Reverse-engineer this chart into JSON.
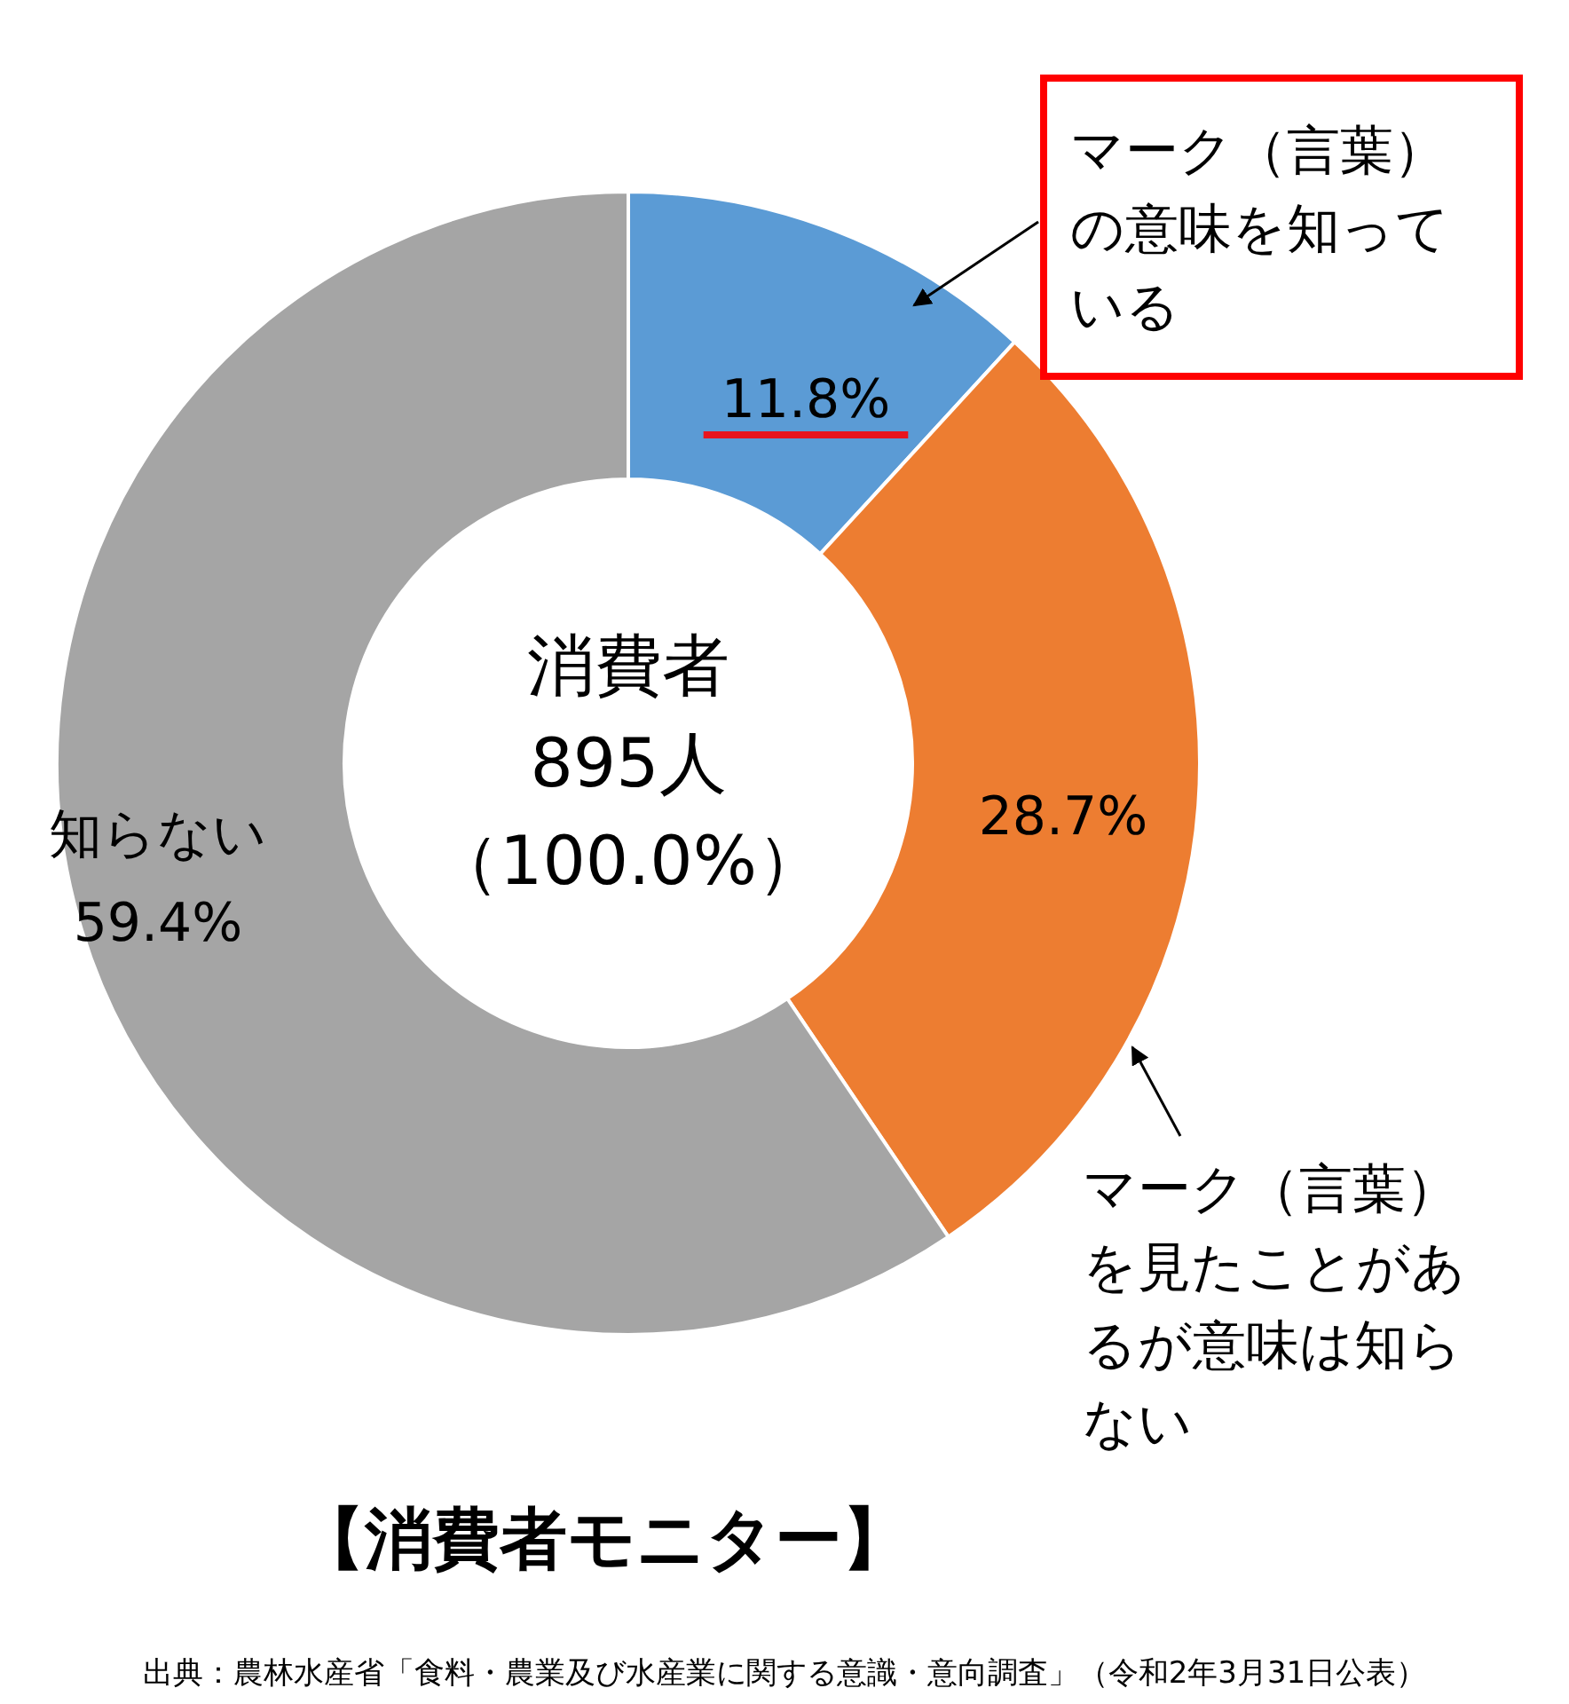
{
  "chart_data": {
    "type": "donut",
    "title": "【消費者モニター】",
    "categories": [
      "マーク（言葉）の意味を知っている",
      "マーク（言葉）を見たことがあるが意味は知らない",
      "知らない"
    ],
    "values": [
      11.8,
      28.7,
      59.4
    ],
    "colors": [
      "#5b9bd5",
      "#ed7d31",
      "#a5a5a5"
    ],
    "value_labels": [
      "11.8%",
      "28.7%",
      "59.4%"
    ],
    "annotations": [
      "消費者",
      "895人",
      "（100.0%）",
      "出典：農林水産省「食料・農業及び水産業に関する意識・意向調査」（令和2年3月31日公表）"
    ]
  }
}
